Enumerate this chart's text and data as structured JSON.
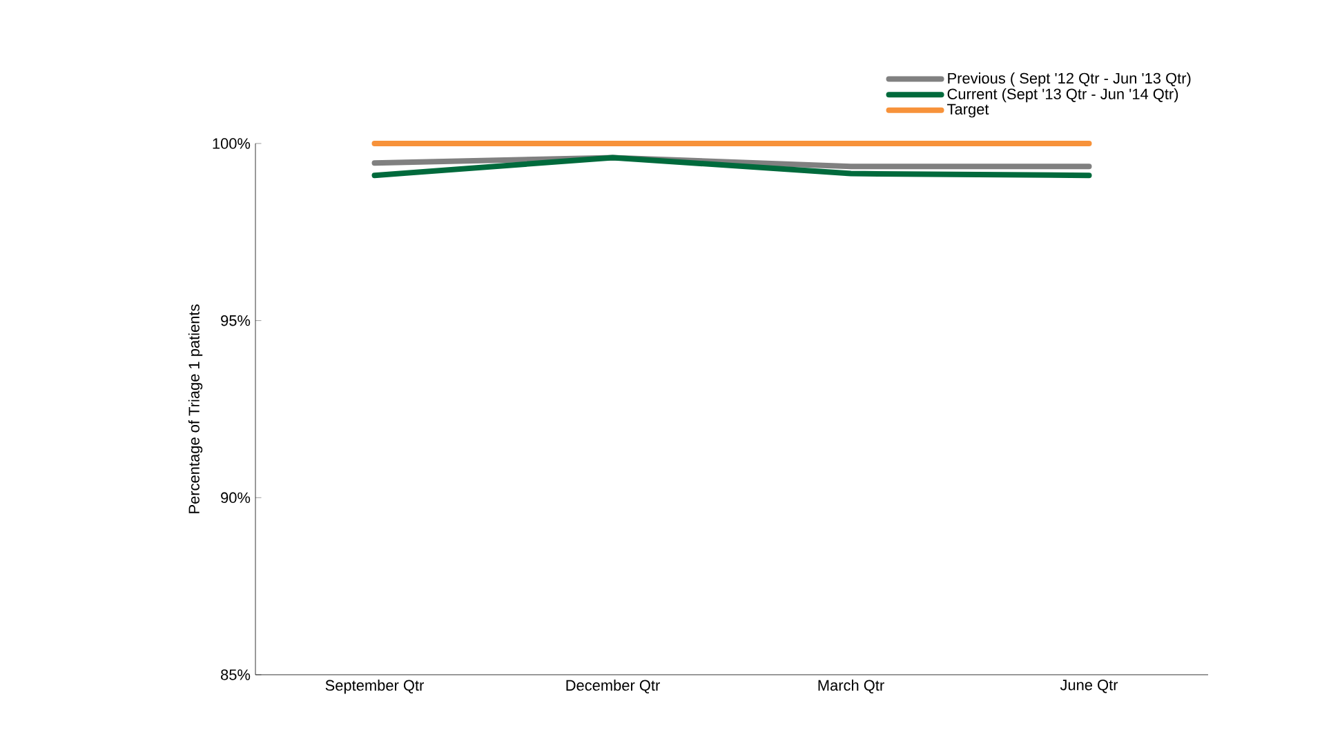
{
  "chart_data": {
    "type": "line",
    "ylabel": "Percentage of Triage 1 patients",
    "categories": [
      "September Qtr",
      "December Qtr",
      "March Qtr",
      "June Qtr"
    ],
    "series": [
      {
        "name": "Previous ( Sept '12 Qtr -  Jun '13 Qtr)",
        "color": "#808080",
        "values": [
          99.45,
          99.6,
          99.35,
          99.35
        ]
      },
      {
        "name": "Current (Sept '13 Qtr - Jun '14 Qtr)",
        "color": "#006a3c",
        "values": [
          99.1,
          99.6,
          99.15,
          99.1
        ]
      },
      {
        "name": "Target",
        "color": "#f7923a",
        "values": [
          100,
          100,
          100,
          100
        ]
      }
    ],
    "ylim": [
      85,
      100
    ],
    "yticks": [
      {
        "value": 85,
        "label": "85%"
      },
      {
        "value": 90,
        "label": "90%"
      },
      {
        "value": 95,
        "label": "95%"
      },
      {
        "value": 100,
        "label": "100%"
      }
    ],
    "grid": false,
    "legend": "top right",
    "marker": "none",
    "line_style": "solid"
  }
}
